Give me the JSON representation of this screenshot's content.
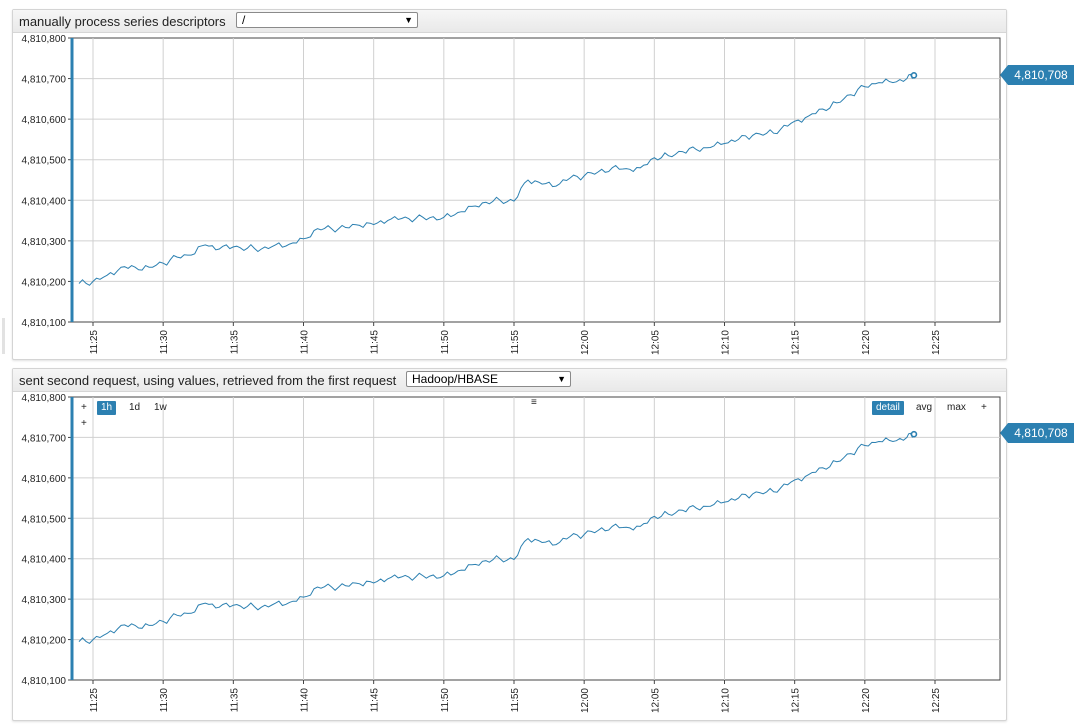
{
  "widgets": [
    {
      "title": "manually process series descriptors",
      "select_value": "/",
      "last_value_label": "4,810,708",
      "controls": null
    },
    {
      "title": "sent second request, using values, retrieved from the first request",
      "select_value": "Hadoop/HBASE",
      "last_value_label": "4,810,708",
      "controls": {
        "plus_top": "+",
        "plus_bottom": "+",
        "periods": [
          "1h",
          "1d",
          "1w"
        ],
        "active_period": "1h",
        "menu_icon": "≡",
        "stat_modes": [
          "detail",
          "avg",
          "max"
        ],
        "active_mode": "detail",
        "plus_right": "+"
      }
    }
  ],
  "chart_data": [
    {
      "type": "line",
      "title": "manually process series descriptors",
      "xlabel": "",
      "ylabel": "",
      "ylim": [
        4810100,
        4810800
      ],
      "yticks": [
        "4,810,100",
        "4,810,200",
        "4,810,300",
        "4,810,400",
        "4,810,500",
        "4,810,600",
        "4,810,700",
        "4,810,800"
      ],
      "xticks": [
        "11:25",
        "11:30",
        "11:35",
        "11:40",
        "11:45",
        "11:50",
        "11:55",
        "12:00",
        "12:05",
        "12:10",
        "12:15",
        "12:20",
        "12:25"
      ],
      "grid": true,
      "series": [
        {
          "color": "#2c80b1",
          "x": [
            "11:24",
            "11:25",
            "11:26",
            "11:27",
            "11:28",
            "11:29",
            "11:30",
            "11:31",
            "11:32",
            "11:33",
            "11:34",
            "11:35",
            "11:36",
            "11:37",
            "11:38",
            "11:39",
            "11:40",
            "11:41",
            "11:42",
            "11:43",
            "11:44",
            "11:45",
            "11:46",
            "11:47",
            "11:48",
            "11:49",
            "11:50",
            "11:51",
            "11:52",
            "11:53",
            "11:54",
            "11:55",
            "11:56",
            "11:57",
            "11:58",
            "11:59",
            "12:00",
            "12:01",
            "12:02",
            "12:03",
            "12:04",
            "12:05",
            "12:06",
            "12:07",
            "12:08",
            "12:09",
            "12:10",
            "12:11",
            "12:12",
            "12:13",
            "12:14",
            "12:15",
            "12:16",
            "12:17",
            "12:18",
            "12:19",
            "12:20",
            "12:21",
            "12:22",
            "12:23",
            "12:23:30"
          ],
          "values": [
            4810195,
            4810200,
            4810215,
            4810235,
            4810235,
            4810235,
            4810245,
            4810260,
            4810265,
            4810290,
            4810280,
            4810285,
            4810282,
            4810280,
            4810290,
            4810292,
            4810305,
            4810330,
            4810330,
            4810333,
            4810338,
            4810340,
            4810350,
            4810355,
            4810355,
            4810357,
            4810358,
            4810370,
            4810385,
            4810395,
            4810400,
            4810398,
            4810450,
            4810440,
            4810435,
            4810455,
            4810460,
            4810470,
            4810480,
            4810478,
            4810480,
            4810505,
            4810510,
            4810520,
            4810525,
            4810530,
            4810540,
            4810550,
            4810560,
            4810565,
            4810575,
            4810595,
            4810608,
            4810625,
            4810640,
            4810660,
            4810680,
            4810690,
            4810690,
            4810700,
            4810708
          ]
        }
      ],
      "last_point": {
        "x": "12:23:30",
        "y": 4810708
      }
    },
    {
      "type": "line",
      "title": "sent second request, using values, retrieved from the first request",
      "xlabel": "",
      "ylabel": "",
      "ylim": [
        4810100,
        4810800
      ],
      "yticks": [
        "4,810,100",
        "4,810,200",
        "4,810,300",
        "4,810,400",
        "4,810,500",
        "4,810,600",
        "4,810,700",
        "4,810,800"
      ],
      "xticks": [
        "11:25",
        "11:30",
        "11:35",
        "11:40",
        "11:45",
        "11:50",
        "11:55",
        "12:00",
        "12:05",
        "12:10",
        "12:15",
        "12:20",
        "12:25"
      ],
      "grid": true,
      "series": [
        {
          "color": "#2c80b1",
          "x": [
            "11:24",
            "11:25",
            "11:26",
            "11:27",
            "11:28",
            "11:29",
            "11:30",
            "11:31",
            "11:32",
            "11:33",
            "11:34",
            "11:35",
            "11:36",
            "11:37",
            "11:38",
            "11:39",
            "11:40",
            "11:41",
            "11:42",
            "11:43",
            "11:44",
            "11:45",
            "11:46",
            "11:47",
            "11:48",
            "11:49",
            "11:50",
            "11:51",
            "11:52",
            "11:53",
            "11:54",
            "11:55",
            "11:56",
            "11:57",
            "11:58",
            "11:59",
            "12:00",
            "12:01",
            "12:02",
            "12:03",
            "12:04",
            "12:05",
            "12:06",
            "12:07",
            "12:08",
            "12:09",
            "12:10",
            "12:11",
            "12:12",
            "12:13",
            "12:14",
            "12:15",
            "12:16",
            "12:17",
            "12:18",
            "12:19",
            "12:20",
            "12:21",
            "12:22",
            "12:23",
            "12:23:30"
          ],
          "values": [
            4810195,
            4810200,
            4810215,
            4810235,
            4810235,
            4810235,
            4810245,
            4810260,
            4810265,
            4810290,
            4810280,
            4810285,
            4810282,
            4810280,
            4810290,
            4810292,
            4810305,
            4810330,
            4810330,
            4810333,
            4810338,
            4810340,
            4810350,
            4810355,
            4810355,
            4810357,
            4810358,
            4810370,
            4810385,
            4810395,
            4810400,
            4810398,
            4810450,
            4810440,
            4810435,
            4810455,
            4810460,
            4810470,
            4810480,
            4810478,
            4810480,
            4810505,
            4810510,
            4810520,
            4810525,
            4810530,
            4810540,
            4810550,
            4810560,
            4810565,
            4810575,
            4810595,
            4810608,
            4810625,
            4810640,
            4810660,
            4810680,
            4810690,
            4810690,
            4810700,
            4810708
          ]
        }
      ],
      "last_point": {
        "x": "12:23:30",
        "y": 4810708
      }
    }
  ]
}
